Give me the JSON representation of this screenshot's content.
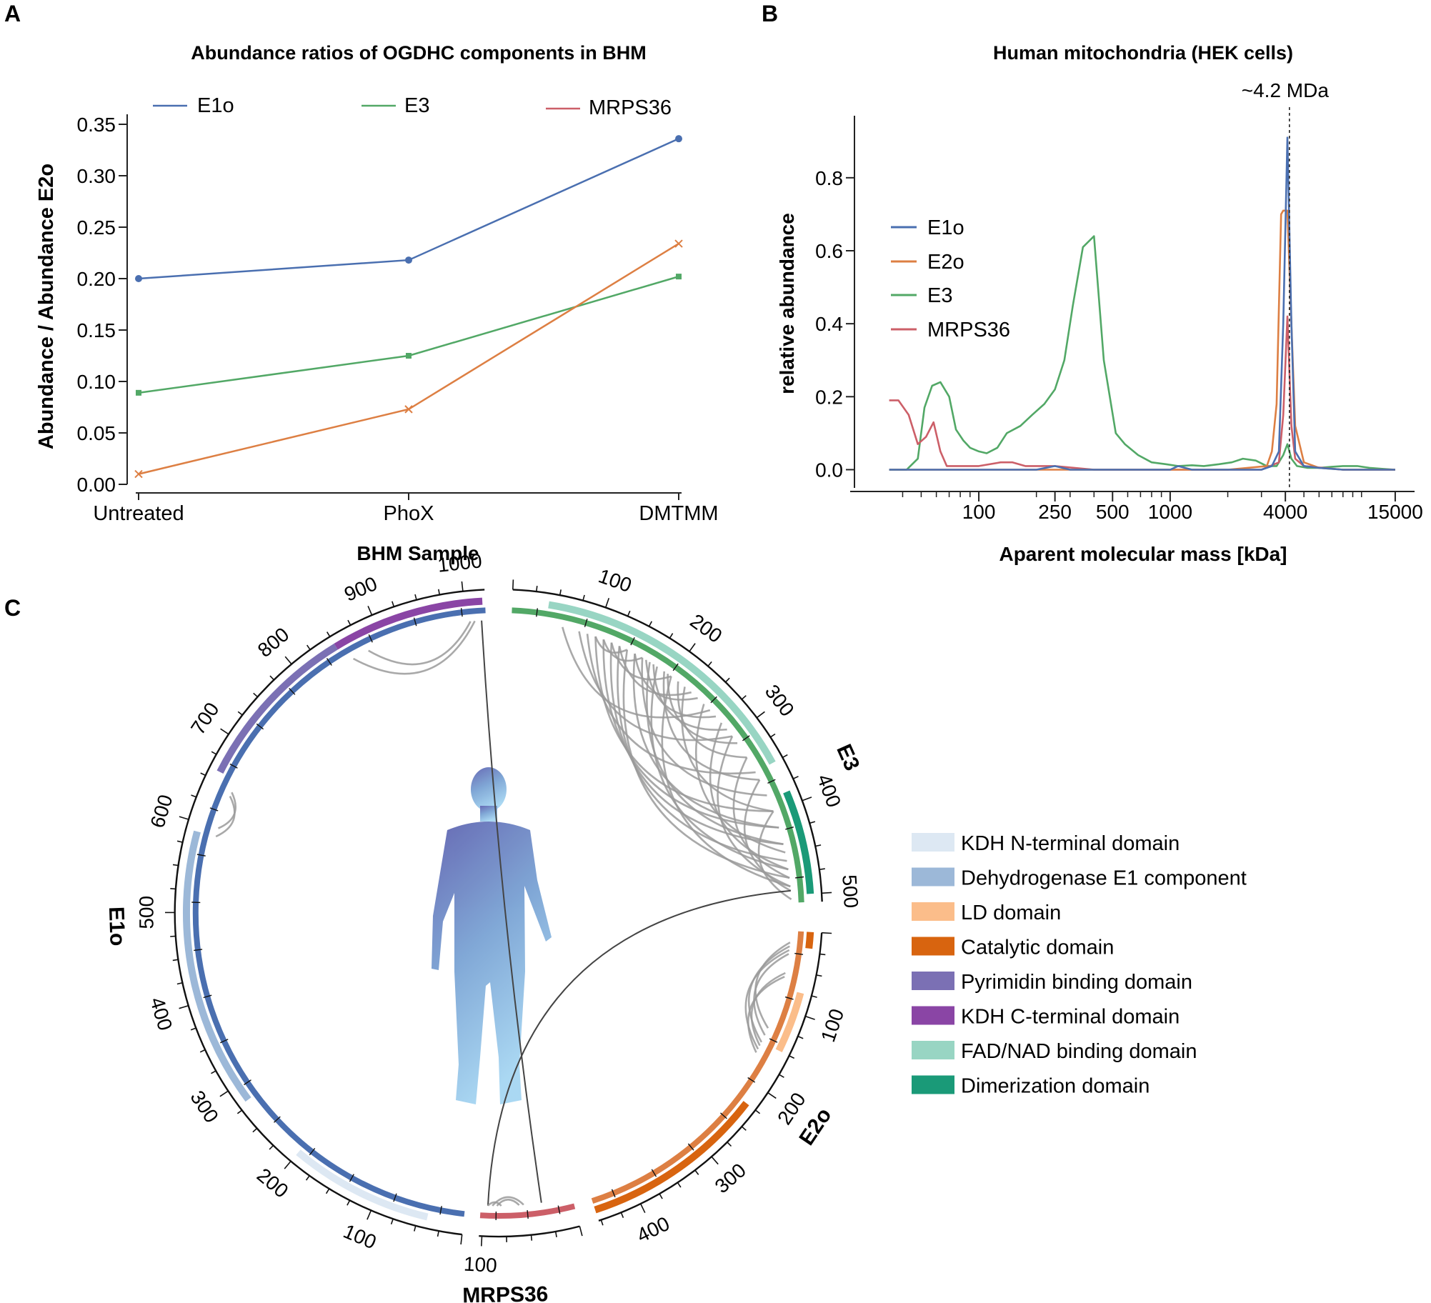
{
  "colors": {
    "e1o": "#4a6fb0",
    "e2o": "#dd7f43",
    "e3": "#52a866",
    "mrps36": "#cc5f68",
    "axis": "#222222",
    "link": "#9a9a9a",
    "link_dark": "#444444"
  },
  "panels": [
    {
      "letter": "A"
    },
    {
      "letter": "B"
    },
    {
      "letter": "C"
    }
  ],
  "chart_data": [
    {
      "id": "A",
      "type": "line",
      "title": "Abundance ratios of OGDHC components in BHM",
      "xlabel": "BHM Sample",
      "ylabel": "Abundance  / Abundance E2o",
      "categories": [
        "Untreated",
        "PhoX",
        "DMTMM"
      ],
      "ylim": [
        0.0,
        0.35
      ],
      "yticks": [
        0.0,
        0.05,
        0.1,
        0.15,
        0.2,
        0.25,
        0.3,
        0.35
      ],
      "ytick_labels": [
        "0.00",
        "0.05",
        "0.10",
        "0.15",
        "0.20",
        "0.25",
        "0.30",
        "0.35"
      ],
      "grid": false,
      "legend_position": "top",
      "series": [
        {
          "name": "E1o",
          "color_key": "e1o",
          "marker": "circle",
          "values": [
            0.2,
            0.218,
            0.336
          ]
        },
        {
          "name": "E3",
          "color_key": "e3",
          "marker": "square",
          "values": [
            0.089,
            0.125,
            0.202
          ]
        },
        {
          "name": "MRPS36",
          "color_key": "mrps36",
          "marker": "none",
          "values": null
        },
        {
          "color_key": "e2o",
          "marker": "x",
          "values": [
            0.01,
            0.073,
            0.234
          ]
        }
      ]
    },
    {
      "id": "B",
      "type": "line",
      "title": "Human mitochondria (HEK cells)",
      "xlabel": "Aparent molecular mass [kDa]",
      "ylabel": "relative abundance",
      "x_scale": "log",
      "xlim": [
        30,
        16500
      ],
      "xticks": [
        100,
        250,
        500,
        1000,
        4000,
        15000
      ],
      "xtick_labels": [
        "100",
        "250",
        "500",
        "1000",
        "4000",
        "15000"
      ],
      "minor_xticks": [
        40,
        50,
        60,
        70,
        80,
        90,
        200,
        300,
        400,
        600,
        700,
        800,
        900,
        2000,
        3000,
        5000,
        6000,
        7000,
        8000,
        9000,
        10000
      ],
      "ylim": [
        -0.05,
        0.97
      ],
      "yticks": [
        0.0,
        0.2,
        0.4,
        0.6,
        0.8
      ],
      "ytick_labels": [
        "0.0",
        "0.2",
        "0.4",
        "0.6",
        "0.8"
      ],
      "grid": false,
      "legend_position": "left",
      "annotation": {
        "text": "~4.2 MDa",
        "x": 4200
      },
      "series": [
        {
          "name": "E1o",
          "color_key": "e1o",
          "x": [
            34,
            40,
            60,
            100,
            200,
            250,
            300,
            400,
            600,
            1000,
            1100,
            1300,
            2000,
            3000,
            3400,
            3700,
            3900,
            4100,
            4300,
            4500,
            5000,
            6000,
            8000,
            15000
          ],
          "values": [
            0,
            0,
            0,
            0,
            0,
            0.01,
            0,
            0,
            0,
            0,
            0.01,
            0,
            0,
            0,
            0.01,
            0.05,
            0.4,
            0.91,
            0.4,
            0.05,
            0.01,
            0.005,
            0,
            0
          ]
        },
        {
          "name": "E2o",
          "color_key": "e2o",
          "x": [
            34,
            40,
            60,
            100,
            200,
            300,
            400,
            1000,
            2000,
            3200,
            3400,
            3600,
            3800,
            3900,
            4100,
            4300,
            4500,
            5000,
            6000,
            8000,
            15000
          ],
          "values": [
            0,
            0,
            0,
            0,
            0,
            0,
            0,
            0,
            0,
            0.01,
            0.05,
            0.18,
            0.7,
            0.71,
            0.71,
            0.4,
            0.12,
            0.02,
            0.005,
            0,
            0
          ]
        },
        {
          "name": "E3",
          "color_key": "e3",
          "x": [
            34,
            42,
            48,
            52,
            57,
            63,
            70,
            76,
            83,
            90,
            100,
            110,
            125,
            140,
            165,
            190,
            220,
            250,
            280,
            310,
            350,
            400,
            450,
            520,
            580,
            680,
            800,
            950,
            1100,
            1300,
            1500,
            1800,
            2100,
            2400,
            2800,
            3200,
            3600,
            3900,
            4100,
            4300,
            4600,
            5200,
            6000,
            7000,
            8000,
            9500,
            11000,
            13000,
            15000
          ],
          "values": [
            0,
            0,
            0.03,
            0.17,
            0.23,
            0.24,
            0.2,
            0.11,
            0.08,
            0.06,
            0.05,
            0.045,
            0.06,
            0.1,
            0.12,
            0.15,
            0.18,
            0.22,
            0.3,
            0.45,
            0.61,
            0.64,
            0.3,
            0.1,
            0.07,
            0.04,
            0.02,
            0.015,
            0.01,
            0.012,
            0.01,
            0.015,
            0.02,
            0.03,
            0.025,
            0.01,
            0.01,
            0.04,
            0.07,
            0.03,
            0.01,
            0.005,
            0.005,
            0.008,
            0.01,
            0.01,
            0.005,
            0.002,
            0
          ]
        },
        {
          "name": "MRPS36",
          "color_key": "mrps36",
          "x": [
            34,
            38,
            43,
            48,
            53,
            58,
            63,
            68,
            75,
            85,
            100,
            130,
            150,
            175,
            250,
            400,
            1000,
            3000,
            3700,
            3900,
            4100,
            4300,
            4500,
            5000,
            8000,
            15000
          ],
          "values": [
            0.19,
            0.19,
            0.15,
            0.07,
            0.09,
            0.13,
            0.05,
            0.01,
            0.01,
            0.01,
            0.01,
            0.02,
            0.02,
            0.01,
            0.01,
            0,
            0,
            0,
            0.02,
            0.15,
            0.42,
            0.12,
            0.03,
            0.01,
            0,
            0
          ]
        }
      ]
    },
    {
      "id": "C",
      "type": "circos",
      "proteins": [
        {
          "name": "E1o",
          "length": 1023,
          "color_key": "e1o",
          "label_ticks": [
            100,
            200,
            300,
            400,
            500,
            600,
            700,
            800,
            900,
            1000
          ]
        },
        {
          "name": "E3",
          "length": 509,
          "color_key": "e3",
          "label_ticks": [
            100,
            200,
            300,
            400,
            500
          ]
        },
        {
          "name": "E2o",
          "length": 453,
          "color_key": "e2o",
          "label_ticks": [
            100,
            200,
            300,
            400
          ]
        },
        {
          "name": "MRPS36",
          "length": 103,
          "color_key": "mrps36",
          "label_ticks": [
            100
          ]
        }
      ],
      "domains": [
        {
          "name": "KDH N-terminal domain",
          "color": "#dde8f3",
          "spans": [
            {
              "protein": "E1o",
              "start": 40,
              "end": 200
            }
          ]
        },
        {
          "name": "Dehydrogenase E1 component",
          "color": "#9cb8d8",
          "spans": [
            {
              "protein": "E1o",
              "start": 280,
              "end": 590
            }
          ]
        },
        {
          "name": "LD domain",
          "color": "#fbbd8a",
          "spans": [
            {
              "protein": "E2o",
              "start": 75,
              "end": 150
            }
          ]
        },
        {
          "name": "Catalytic domain",
          "color": "#d8640f",
          "spans": [
            {
              "protein": "E2o",
              "start": 225,
              "end": 453
            },
            {
              "protein": "E2o",
              "start": 0,
              "end": 20
            }
          ]
        },
        {
          "name": "Pyrimidin binding domain",
          "color": "#7b70b4",
          "spans": [
            {
              "protein": "E1o",
              "start": 660,
              "end": 850
            }
          ]
        },
        {
          "name": "KDH C-terminal domain",
          "color": "#8a45a5",
          "spans": [
            {
              "protein": "E1o",
              "start": 850,
              "end": 1020
            }
          ]
        },
        {
          "name": "FAD/NAD binding domain",
          "color": "#98d5c3",
          "spans": [
            {
              "protein": "E3",
              "start": 40,
              "end": 350
            }
          ]
        },
        {
          "name": " Dimerization domain",
          "color": "#1a9a78",
          "spans": [
            {
              "protein": "E3",
              "start": 385,
              "end": 500
            }
          ]
        }
      ],
      "links": [
        {
          "a": [
            "E1o",
            1010
          ],
          "b": [
            "E1o",
            860
          ],
          "style": "light"
        },
        {
          "a": [
            "E1o",
            1005
          ],
          "b": [
            "E1o",
            880
          ],
          "style": "light"
        },
        {
          "a": [
            "E1o",
            640
          ],
          "b": [
            "E1o",
            590
          ],
          "style": "light"
        },
        {
          "a": [
            "E1o",
            645
          ],
          "b": [
            "E1o",
            600
          ],
          "style": "light"
        },
        {
          "a": [
            "E3",
            60
          ],
          "b": [
            "E3",
            260
          ],
          "style": "light"
        },
        {
          "a": [
            "E3",
            80
          ],
          "b": [
            "E3",
            300
          ],
          "style": "light"
        },
        {
          "a": [
            "E3",
            90
          ],
          "b": [
            "E3",
            350
          ],
          "style": "light"
        },
        {
          "a": [
            "E3",
            100
          ],
          "b": [
            "E3",
            400
          ],
          "style": "light"
        },
        {
          "a": [
            "E3",
            110
          ],
          "b": [
            "E3",
            420
          ],
          "style": "light"
        },
        {
          "a": [
            "E3",
            120
          ],
          "b": [
            "E3",
            440
          ],
          "style": "light"
        },
        {
          "a": [
            "E3",
            130
          ],
          "b": [
            "E3",
            460
          ],
          "style": "light"
        },
        {
          "a": [
            "E3",
            140
          ],
          "b": [
            "E3",
            480
          ],
          "style": "light"
        },
        {
          "a": [
            "E3",
            150
          ],
          "b": [
            "E3",
            420
          ],
          "style": "light"
        },
        {
          "a": [
            "E3",
            160
          ],
          "b": [
            "E3",
            380
          ],
          "style": "light"
        },
        {
          "a": [
            "E3",
            170
          ],
          "b": [
            "E3",
            440
          ],
          "style": "light"
        },
        {
          "a": [
            "E3",
            180
          ],
          "b": [
            "E3",
            470
          ],
          "style": "light"
        },
        {
          "a": [
            "E3",
            190
          ],
          "b": [
            "E3",
            360
          ],
          "style": "light"
        },
        {
          "a": [
            "E3",
            200
          ],
          "b": [
            "E3",
            490
          ],
          "style": "light"
        },
        {
          "a": [
            "E3",
            210
          ],
          "b": [
            "E3",
            330
          ],
          "style": "light"
        },
        {
          "a": [
            "E3",
            100
          ],
          "b": [
            "E3",
            140
          ],
          "style": "light"
        },
        {
          "a": [
            "E3",
            110
          ],
          "b": [
            "E3",
            160
          ],
          "style": "light"
        },
        {
          "a": [
            "E3",
            120
          ],
          "b": [
            "E3",
            200
          ],
          "style": "light"
        },
        {
          "a": [
            "E3",
            130
          ],
          "b": [
            "E3",
            230
          ],
          "style": "light"
        },
        {
          "a": [
            "E3",
            150
          ],
          "b": [
            "E3",
            240
          ],
          "style": "light"
        },
        {
          "a": [
            "E3",
            165
          ],
          "b": [
            "E3",
            270
          ],
          "style": "light"
        },
        {
          "a": [
            "E3",
            175
          ],
          "b": [
            "E3",
            290
          ],
          "style": "light"
        },
        {
          "a": [
            "E3",
            195
          ],
          "b": [
            "E3",
            310
          ],
          "style": "light"
        },
        {
          "a": [
            "E3",
            220
          ],
          "b": [
            "E3",
            400
          ],
          "style": "light"
        },
        {
          "a": [
            "E3",
            250
          ],
          "b": [
            "E3",
            450
          ],
          "style": "light"
        },
        {
          "a": [
            "E3",
            280
          ],
          "b": [
            "E3",
            470
          ],
          "style": "light"
        },
        {
          "a": [
            "E3",
            300
          ],
          "b": [
            "E3",
            490
          ],
          "style": "light"
        },
        {
          "a": [
            "E3",
            330
          ],
          "b": [
            "E3",
            480
          ],
          "style": "light"
        },
        {
          "a": [
            "E3",
            360
          ],
          "b": [
            "E3",
            495
          ],
          "style": "light"
        },
        {
          "a": [
            "E3",
            400
          ],
          "b": [
            "E3",
            505
          ],
          "style": "light"
        },
        {
          "a": [
            "E2o",
            15
          ],
          "b": [
            "E2o",
            130
          ],
          "style": "light"
        },
        {
          "a": [
            "E2o",
            20
          ],
          "b": [
            "E2o",
            150
          ],
          "style": "light"
        },
        {
          "a": [
            "E2o",
            25
          ],
          "b": [
            "E2o",
            160
          ],
          "style": "light"
        },
        {
          "a": [
            "E2o",
            30
          ],
          "b": [
            "E2o",
            140
          ],
          "style": "light"
        },
        {
          "a": [
            "E2o",
            55
          ],
          "b": [
            "E2o",
            155
          ],
          "style": "light"
        },
        {
          "a": [
            "E2o",
            60
          ],
          "b": [
            "E2o",
            165
          ],
          "style": "light"
        },
        {
          "a": [
            "MRPS36",
            35
          ],
          "b": [
            "E1o",
            1018
          ],
          "style": "dark"
        },
        {
          "a": [
            "MRPS36",
            95
          ],
          "b": [
            "E3",
            495
          ],
          "style": "dark"
        },
        {
          "a": [
            "MRPS36",
            55
          ],
          "b": [
            "MRPS36",
            90
          ],
          "style": "light"
        },
        {
          "a": [
            "MRPS36",
            60
          ],
          "b": [
            "MRPS36",
            85
          ],
          "style": "light"
        },
        {
          "a": [
            "MRPS36",
            80
          ],
          "b": [
            "MRPS36",
            95
          ],
          "style": "light"
        }
      ]
    }
  ]
}
